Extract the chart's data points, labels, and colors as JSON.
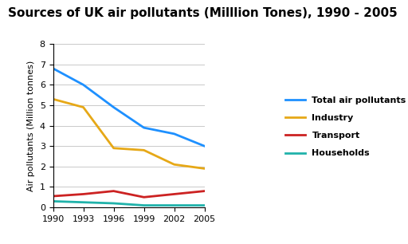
{
  "title": "Sources of UK air pollutants (Milllion Tones), 1990 - 2005",
  "ylabel": "Air pollutants (Million tonnes)",
  "years": [
    1990,
    1993,
    1996,
    1999,
    2002,
    2005
  ],
  "series": {
    "Total air pollutants": {
      "values": [
        6.8,
        6.0,
        4.9,
        3.9,
        3.6,
        3.0
      ],
      "color": "#1e90ff"
    },
    "Industry": {
      "values": [
        5.3,
        4.9,
        2.9,
        2.8,
        2.1,
        1.9
      ],
      "color": "#e6a817"
    },
    "Transport": {
      "values": [
        0.55,
        0.65,
        0.8,
        0.5,
        0.65,
        0.8
      ],
      "color": "#cc2222"
    },
    "Households": {
      "values": [
        0.3,
        0.25,
        0.2,
        0.1,
        0.1,
        0.1
      ],
      "color": "#20b2aa"
    }
  },
  "ylim": [
    0,
    8
  ],
  "yticks": [
    0,
    1,
    2,
    3,
    4,
    5,
    6,
    7,
    8
  ],
  "background_color": "#ffffff",
  "title_fontsize": 11,
  "axis_label_fontsize": 8,
  "tick_fontsize": 8,
  "legend_fontsize": 8,
  "linewidth": 2.0
}
